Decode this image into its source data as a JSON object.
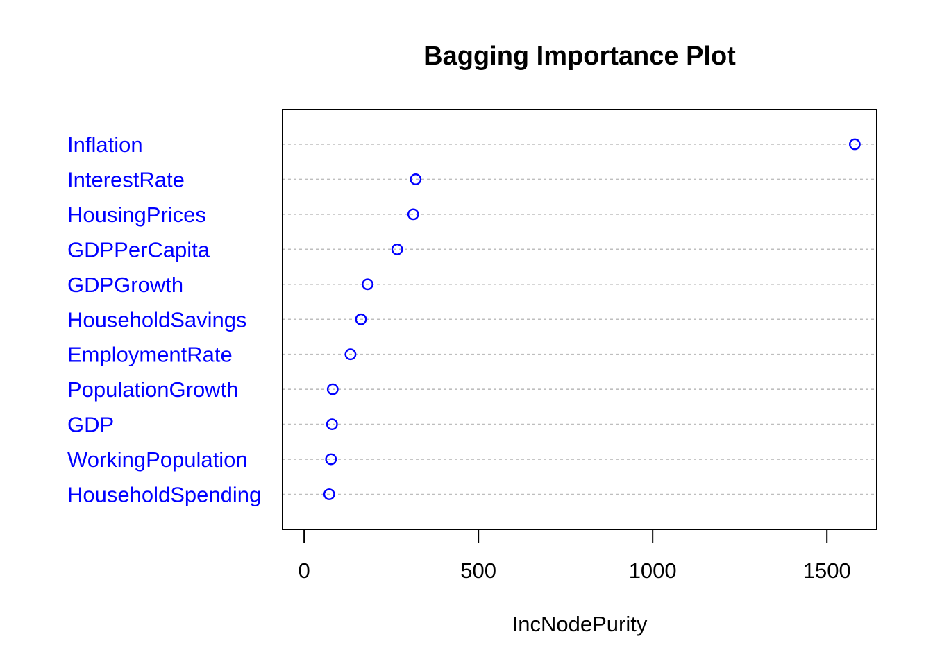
{
  "chart_data": {
    "type": "scatter",
    "title": "Bagging Importance Plot",
    "xlabel": "IncNodePurity",
    "ylabel": "",
    "xlim": [
      -62,
      1643
    ],
    "x_ticks": [
      0,
      500,
      1000,
      1500
    ],
    "x_tick_labels": [
      "0",
      "500",
      "1000",
      "1500"
    ],
    "grid": true,
    "categories": [
      "Inflation",
      "InterestRate",
      "HousingPrices",
      "GDPPerCapita",
      "GDPGrowth",
      "HouseholdSavings",
      "EmploymentRate",
      "PopulationGrowth",
      "GDP",
      "WorkingPopulation",
      "HouseholdSpending"
    ],
    "values": [
      1580,
      320,
      313,
      267,
      182,
      163,
      133,
      82,
      80,
      77,
      72
    ],
    "colors": {
      "point": "#0000ff",
      "category_label": "#0000ff",
      "grid": "#bebebe",
      "frame": "#000000"
    },
    "marker": "open-circle"
  }
}
